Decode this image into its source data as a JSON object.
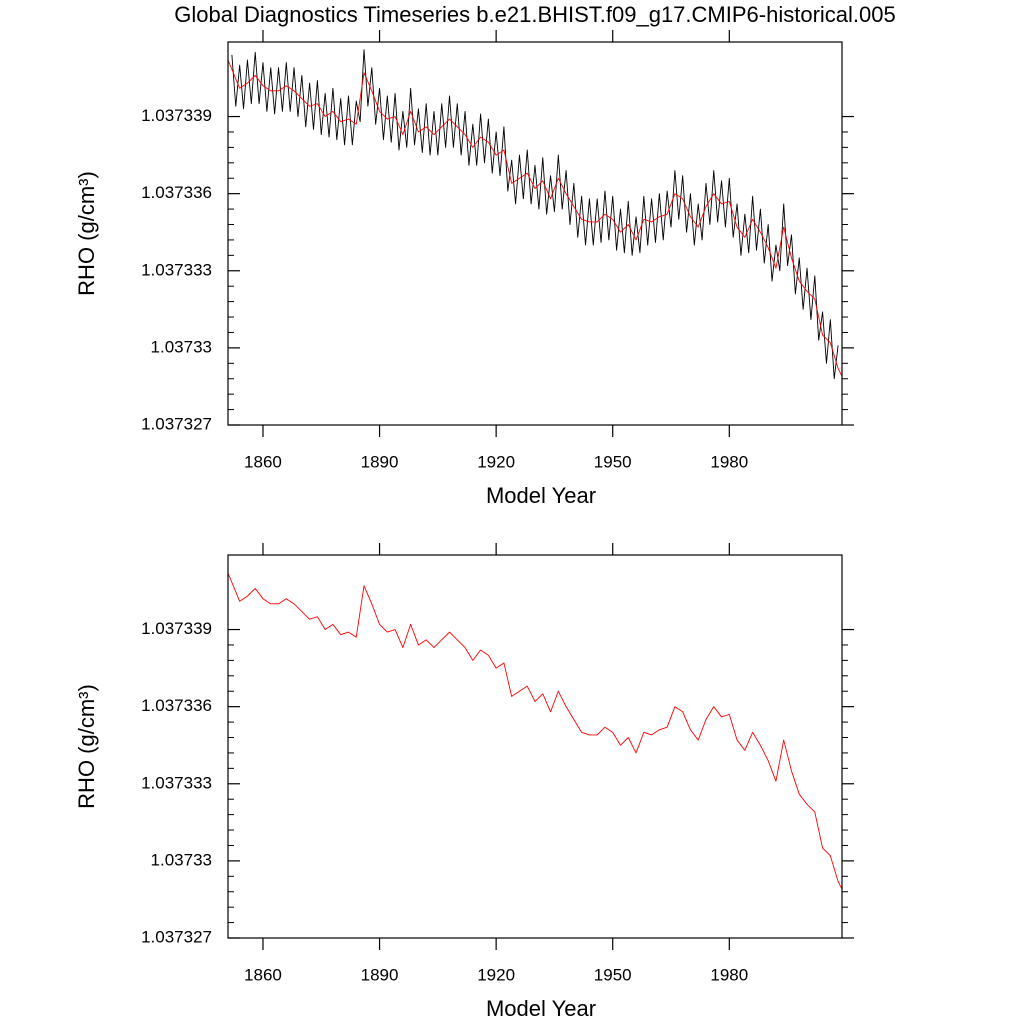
{
  "chart_data": [
    {
      "type": "line",
      "title": "Global Diagnostics Timeseries b.e21.BHIST.f09_g17.CMIP6-historical.005",
      "xlabel": "Model Year",
      "ylabel": "RHO (g/cm³)",
      "xlim": [
        1851,
        2009
      ],
      "xticks": [
        1860,
        1890,
        1920,
        1950,
        1980
      ],
      "ylim": [
        1.037327,
        1.0373419
      ],
      "yticks": [
        1.037327,
        1.03733,
        1.037333,
        1.037336,
        1.037339
      ],
      "series": [
        {
          "color": "#000000",
          "x": [
            1852,
            1853,
            1854,
            1855,
            1856,
            1857,
            1858,
            1859,
            1860,
            1861,
            1862,
            1863,
            1864,
            1865,
            1866,
            1867,
            1868,
            1869,
            1870,
            1871,
            1872,
            1873,
            1874,
            1875,
            1876,
            1877,
            1878,
            1879,
            1880,
            1881,
            1882,
            1883,
            1884,
            1885,
            1886,
            1887,
            1888,
            1889,
            1890,
            1891,
            1892,
            1893,
            1894,
            1895,
            1896,
            1897,
            1898,
            1899,
            1900,
            1901,
            1902,
            1903,
            1904,
            1905,
            1906,
            1907,
            1908,
            1909,
            1910,
            1911,
            1912,
            1913,
            1914,
            1915,
            1916,
            1917,
            1918,
            1919,
            1920,
            1921,
            1922,
            1923,
            1924,
            1925,
            1926,
            1927,
            1928,
            1929,
            1930,
            1931,
            1932,
            1933,
            1934,
            1935,
            1936,
            1937,
            1938,
            1939,
            1940,
            1941,
            1942,
            1943,
            1944,
            1945,
            1946,
            1947,
            1948,
            1949,
            1950,
            1951,
            1952,
            1953,
            1954,
            1955,
            1956,
            1957,
            1958,
            1959,
            1960,
            1961,
            1962,
            1963,
            1964,
            1965,
            1966,
            1967,
            1968,
            1969,
            1970,
            1971,
            1972,
            1973,
            1974,
            1975,
            1976,
            1977,
            1978,
            1979,
            1980,
            1981,
            1982,
            1983,
            1984,
            1985,
            1986,
            1987,
            1988,
            1989,
            1990,
            1991,
            1992,
            1993,
            1994,
            1995,
            1996,
            1997,
            1998,
            1999,
            2000,
            2001,
            2002,
            2003,
            2004,
            2005,
            2006,
            2007,
            2008
          ],
          "values": [
            1.0373414,
            1.0373394,
            1.037341,
            1.0373393,
            1.0373412,
            1.0373395,
            1.0373415,
            1.0373395,
            1.0373411,
            1.0373392,
            1.0373409,
            1.0373391,
            1.0373409,
            1.0373392,
            1.0373411,
            1.0373392,
            1.0373409,
            1.037339,
            1.0373406,
            1.0373386,
            1.0373403,
            1.0373385,
            1.0373404,
            1.0373383,
            1.0373399,
            1.0373382,
            1.0373401,
            1.0373381,
            1.0373397,
            1.0373379,
            1.0373398,
            1.0373379,
            1.0373396,
            1.0373388,
            1.0373416,
            1.0373394,
            1.0373409,
            1.0373387,
            1.0373401,
            1.0373381,
            1.0373398,
            1.037338,
            1.0373399,
            1.0373377,
            1.0373392,
            1.0373378,
            1.0373401,
            1.0373379,
            1.0373393,
            1.0373376,
            1.0373395,
            1.0373375,
            1.0373392,
            1.0373375,
            1.0373395,
            1.0373378,
            1.0373398,
            1.0373378,
            1.0373395,
            1.0373375,
            1.0373392,
            1.0373371,
            1.0373387,
            1.0373371,
            1.0373391,
            1.0373372,
            1.0373389,
            1.0373368,
            1.0373384,
            1.0373367,
            1.0373386,
            1.0373361,
            1.0373373,
            1.0373356,
            1.0373375,
            1.0373358,
            1.0373377,
            1.0373356,
            1.0373371,
            1.0373354,
            1.0373374,
            1.0373352,
            1.0373367,
            1.0373353,
            1.0373375,
            1.0373354,
            1.0373369,
            1.0373348,
            1.0373364,
            1.0373343,
            1.0373359,
            1.037334,
            1.0373358,
            1.037334,
            1.0373358,
            1.0373341,
            1.0373361,
            1.0373342,
            1.0373359,
            1.0373338,
            1.0373354,
            1.0373337,
            1.0373357,
            1.0373336,
            1.0373351,
            1.0373337,
            1.0373359,
            1.037334,
            1.0373358,
            1.0373341,
            1.037336,
            1.0373342,
            1.0373361,
            1.0373347,
            1.0373369,
            1.037335,
            1.0373367,
            1.0373345,
            1.037336,
            1.037334,
            1.0373356,
            1.0373342,
            1.0373364,
            1.0373348,
            1.0373369,
            1.0373349,
            1.0373365,
            1.0373347,
            1.0373366,
            1.0373343,
            1.0373356,
            1.0373336,
            1.0373352,
            1.0373337,
            1.0373359,
            1.0373338,
            1.0373354,
            1.0373333,
            1.0373348,
            1.0373326,
            1.037334,
            1.037333,
            1.0373356,
            1.0373332,
            1.0373344,
            1.0373321,
            1.0373335,
            1.0373315,
            1.0373331,
            1.0373311,
            1.0373328,
            1.0373303,
            1.0373314,
            1.0373294,
            1.0373311,
            1.0373288,
            1.0373301
          ]
        },
        {
          "color": "#ff0000",
          "x": [
            1851,
            1854,
            1856,
            1858,
            1860,
            1862,
            1864,
            1866,
            1868,
            1870,
            1872,
            1874,
            1876,
            1878,
            1880,
            1882,
            1884,
            1886,
            1888,
            1890,
            1892,
            1894,
            1896,
            1898,
            1900,
            1902,
            1904,
            1906,
            1908,
            1910,
            1912,
            1914,
            1916,
            1918,
            1920,
            1922,
            1924,
            1926,
            1928,
            1930,
            1932,
            1934,
            1936,
            1938,
            1940,
            1942,
            1944,
            1946,
            1948,
            1950,
            1952,
            1954,
            1956,
            1958,
            1960,
            1962,
            1964,
            1966,
            1968,
            1970,
            1972,
            1974,
            1976,
            1978,
            1980,
            1982,
            1984,
            1986,
            1988,
            1990,
            1992,
            1994,
            1996,
            1998,
            2000,
            2002,
            2004,
            2006,
            2008,
            2009
          ],
          "values": [
            1.0373412,
            1.0373401,
            1.0373403,
            1.0373406,
            1.0373402,
            1.03734,
            1.03734,
            1.0373402,
            1.03734,
            1.0373397,
            1.0373394,
            1.0373395,
            1.037339,
            1.0373392,
            1.0373388,
            1.0373389,
            1.0373387,
            1.0373407,
            1.03734,
            1.0373392,
            1.0373389,
            1.037339,
            1.0373383,
            1.0373392,
            1.0373384,
            1.0373386,
            1.0373383,
            1.0373386,
            1.0373389,
            1.0373386,
            1.0373383,
            1.0373378,
            1.0373382,
            1.037338,
            1.0373375,
            1.0373377,
            1.0373364,
            1.0373366,
            1.0373368,
            1.0373362,
            1.0373365,
            1.0373358,
            1.0373366,
            1.037336,
            1.0373355,
            1.037335,
            1.0373349,
            1.0373349,
            1.0373352,
            1.037335,
            1.0373345,
            1.0373348,
            1.0373342,
            1.037335,
            1.0373349,
            1.0373351,
            1.0373352,
            1.037336,
            1.0373358,
            1.0373351,
            1.0373347,
            1.0373355,
            1.037336,
            1.0373356,
            1.0373357,
            1.0373347,
            1.0373343,
            1.037335,
            1.0373345,
            1.0373339,
            1.0373331,
            1.0373347,
            1.0373335,
            1.0373326,
            1.0373322,
            1.0373319,
            1.0373305,
            1.0373302,
            1.0373292,
            1.0373289
          ]
        }
      ]
    },
    {
      "type": "line",
      "xlabel": "Model Year",
      "ylabel": "RHO (g/cm³)",
      "xlim": [
        1851,
        2009
      ],
      "xticks": [
        1860,
        1890,
        1920,
        1950,
        1980
      ],
      "ylim": [
        1.037327,
        1.0373419
      ],
      "yticks": [
        1.037327,
        1.03733,
        1.037333,
        1.037336,
        1.037339
      ],
      "series": [
        {
          "color": "#ff0000",
          "x": [
            1851,
            1854,
            1856,
            1858,
            1860,
            1862,
            1864,
            1866,
            1868,
            1870,
            1872,
            1874,
            1876,
            1878,
            1880,
            1882,
            1884,
            1886,
            1888,
            1890,
            1892,
            1894,
            1896,
            1898,
            1900,
            1902,
            1904,
            1906,
            1908,
            1910,
            1912,
            1914,
            1916,
            1918,
            1920,
            1922,
            1924,
            1926,
            1928,
            1930,
            1932,
            1934,
            1936,
            1938,
            1940,
            1942,
            1944,
            1946,
            1948,
            1950,
            1952,
            1954,
            1956,
            1958,
            1960,
            1962,
            1964,
            1966,
            1968,
            1970,
            1972,
            1974,
            1976,
            1978,
            1980,
            1982,
            1984,
            1986,
            1988,
            1990,
            1992,
            1994,
            1996,
            1998,
            2000,
            2002,
            2004,
            2006,
            2008,
            2009
          ],
          "values": [
            1.0373412,
            1.0373401,
            1.0373403,
            1.0373406,
            1.0373402,
            1.03734,
            1.03734,
            1.0373402,
            1.03734,
            1.0373397,
            1.0373394,
            1.0373395,
            1.037339,
            1.0373392,
            1.0373388,
            1.0373389,
            1.0373387,
            1.0373407,
            1.03734,
            1.0373392,
            1.0373389,
            1.037339,
            1.0373383,
            1.0373392,
            1.0373384,
            1.0373386,
            1.0373383,
            1.0373386,
            1.0373389,
            1.0373386,
            1.0373383,
            1.0373378,
            1.0373382,
            1.037338,
            1.0373375,
            1.0373377,
            1.0373364,
            1.0373366,
            1.0373368,
            1.0373362,
            1.0373365,
            1.0373358,
            1.0373366,
            1.037336,
            1.0373355,
            1.037335,
            1.0373349,
            1.0373349,
            1.0373352,
            1.037335,
            1.0373345,
            1.0373348,
            1.0373342,
            1.037335,
            1.0373349,
            1.0373351,
            1.0373352,
            1.037336,
            1.0373358,
            1.0373351,
            1.0373347,
            1.0373355,
            1.037336,
            1.0373356,
            1.0373357,
            1.0373347,
            1.0373343,
            1.037335,
            1.0373345,
            1.0373339,
            1.0373331,
            1.0373347,
            1.0373335,
            1.0373326,
            1.0373322,
            1.0373319,
            1.0373305,
            1.0373302,
            1.0373292,
            1.0373289
          ]
        }
      ]
    }
  ]
}
